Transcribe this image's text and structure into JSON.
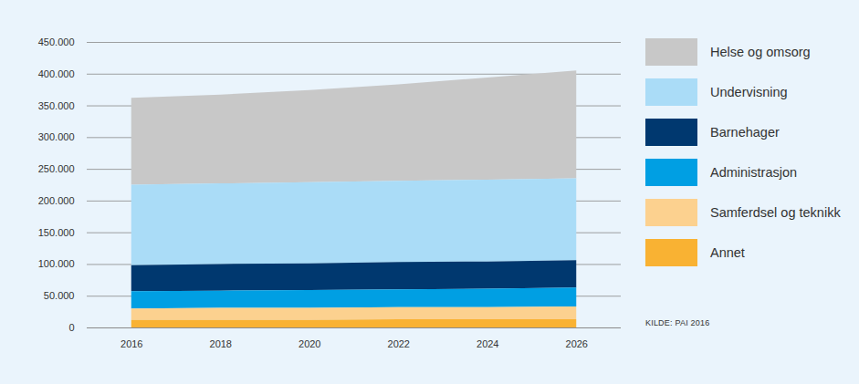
{
  "chart_data": {
    "type": "area",
    "stacked": true,
    "grid": true,
    "legend": "right",
    "caption": "KILDE: PAI 2016",
    "x": [
      2016,
      2018,
      2020,
      2022,
      2024,
      2026
    ],
    "xlim": [
      2015,
      2027
    ],
    "xticks": [
      2016,
      2018,
      2020,
      2022,
      2024,
      2026
    ],
    "ylim": [
      0,
      450000
    ],
    "yticks": [
      0,
      {
        "value": 50000,
        "label": "50.000"
      },
      {
        "value": 100000,
        "label": "100.000"
      },
      {
        "value": 150000,
        "label": "150.000"
      },
      {
        "value": 200000,
        "label": "200.000"
      },
      {
        "value": 250000,
        "label": "250.000"
      },
      {
        "value": 300000,
        "label": "300.000"
      },
      {
        "value": 350000,
        "label": "350.000"
      },
      {
        "value": 400000,
        "label": "400.000"
      },
      {
        "value": 450000,
        "label": "450.000"
      }
    ],
    "series": [
      {
        "name": "Helse og omsorg",
        "color": "#c8c8c8",
        "values": [
          137000,
          140000,
          145000,
          152000,
          161000,
          170000
        ]
      },
      {
        "name": "Undervisning",
        "color": "#aadcf7",
        "values": [
          127000,
          127000,
          128000,
          128000,
          129000,
          129000
        ]
      },
      {
        "name": "Barnehager",
        "color": "#00386f",
        "values": [
          41000,
          42000,
          42000,
          43000,
          43000,
          43000
        ]
      },
      {
        "name": "Administrasjon",
        "color": "#009fe3",
        "values": [
          27000,
          27000,
          28000,
          28000,
          29000,
          30000
        ]
      },
      {
        "name": "Samferdsel og teknikk",
        "color": "#fcd18f",
        "values": [
          18000,
          19000,
          19000,
          19000,
          19000,
          20000
        ]
      },
      {
        "name": "Annet",
        "color": "#f9b233",
        "values": [
          12000,
          12000,
          12000,
          13000,
          13000,
          13000
        ]
      }
    ]
  }
}
